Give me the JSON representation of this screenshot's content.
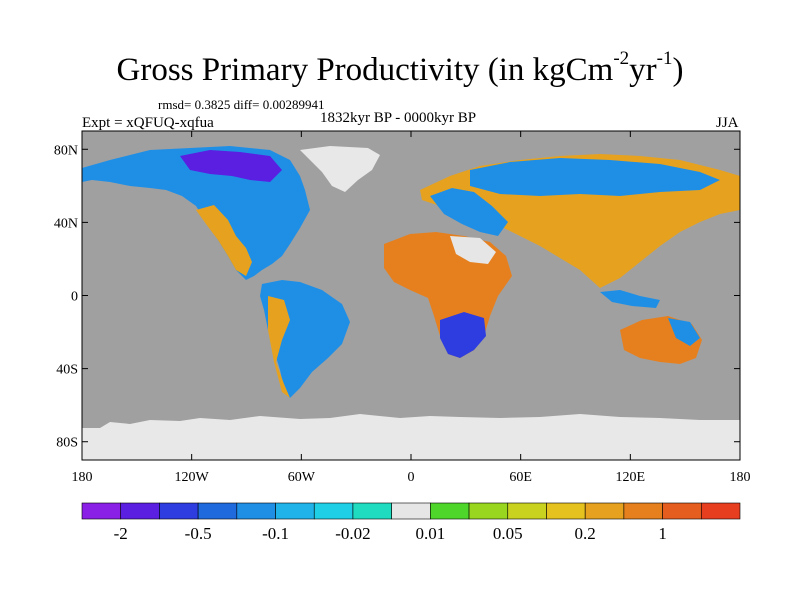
{
  "title": {
    "main": "Gross Primary Productivity (in kgCm",
    "exp1": "-2",
    "mid": "yr",
    "exp2": "-1",
    "end": ")"
  },
  "subtitle": {
    "stats": "rmsd= 0.3825 diff= 0.00289941",
    "experiment": "Expt = xQFUQ-xqfua",
    "period": "1832kyr BP - 0000kyr BP",
    "season": "JJA"
  },
  "axes": {
    "y_ticks": [
      {
        "value": 80,
        "label": "80N"
      },
      {
        "value": 40,
        "label": "40N"
      },
      {
        "value": 0,
        "label": "0"
      },
      {
        "value": -40,
        "label": "40S"
      },
      {
        "value": -80,
        "label": "80S"
      }
    ],
    "x_ticks": [
      {
        "value": -180,
        "label": "180"
      },
      {
        "value": -120,
        "label": "120W"
      },
      {
        "value": -60,
        "label": "60W"
      },
      {
        "value": 0,
        "label": "0"
      },
      {
        "value": 60,
        "label": "60E"
      },
      {
        "value": 120,
        "label": "120E"
      },
      {
        "value": 180,
        "label": "180"
      }
    ]
  },
  "colorbar": {
    "colors": [
      "#8a1fe6",
      "#5a1fe0",
      "#2d3de0",
      "#1f6bde",
      "#1f8fe6",
      "#1fb3ea",
      "#1fcfe6",
      "#1fdcc0",
      "#e6e6e6",
      "#4fd62a",
      "#98d620",
      "#c8d21f",
      "#e6c21f",
      "#e6a21f",
      "#e6801f",
      "#e65e1f",
      "#e63e1f"
    ],
    "labels": [
      {
        "after_index": 0,
        "text": "-2"
      },
      {
        "after_index": 2,
        "text": "-0.5"
      },
      {
        "after_index": 4,
        "text": "-0.1"
      },
      {
        "after_index": 6,
        "text": "-0.02"
      },
      {
        "after_index": 8,
        "text": "0.01"
      },
      {
        "after_index": 10,
        "text": "0.05"
      },
      {
        "after_index": 12,
        "text": "0.2"
      },
      {
        "after_index": 14,
        "text": "1"
      }
    ]
  },
  "map_colors": {
    "ocean": "#a0a0a0",
    "ice": "#e8e8e8",
    "coast": "#000000"
  }
}
